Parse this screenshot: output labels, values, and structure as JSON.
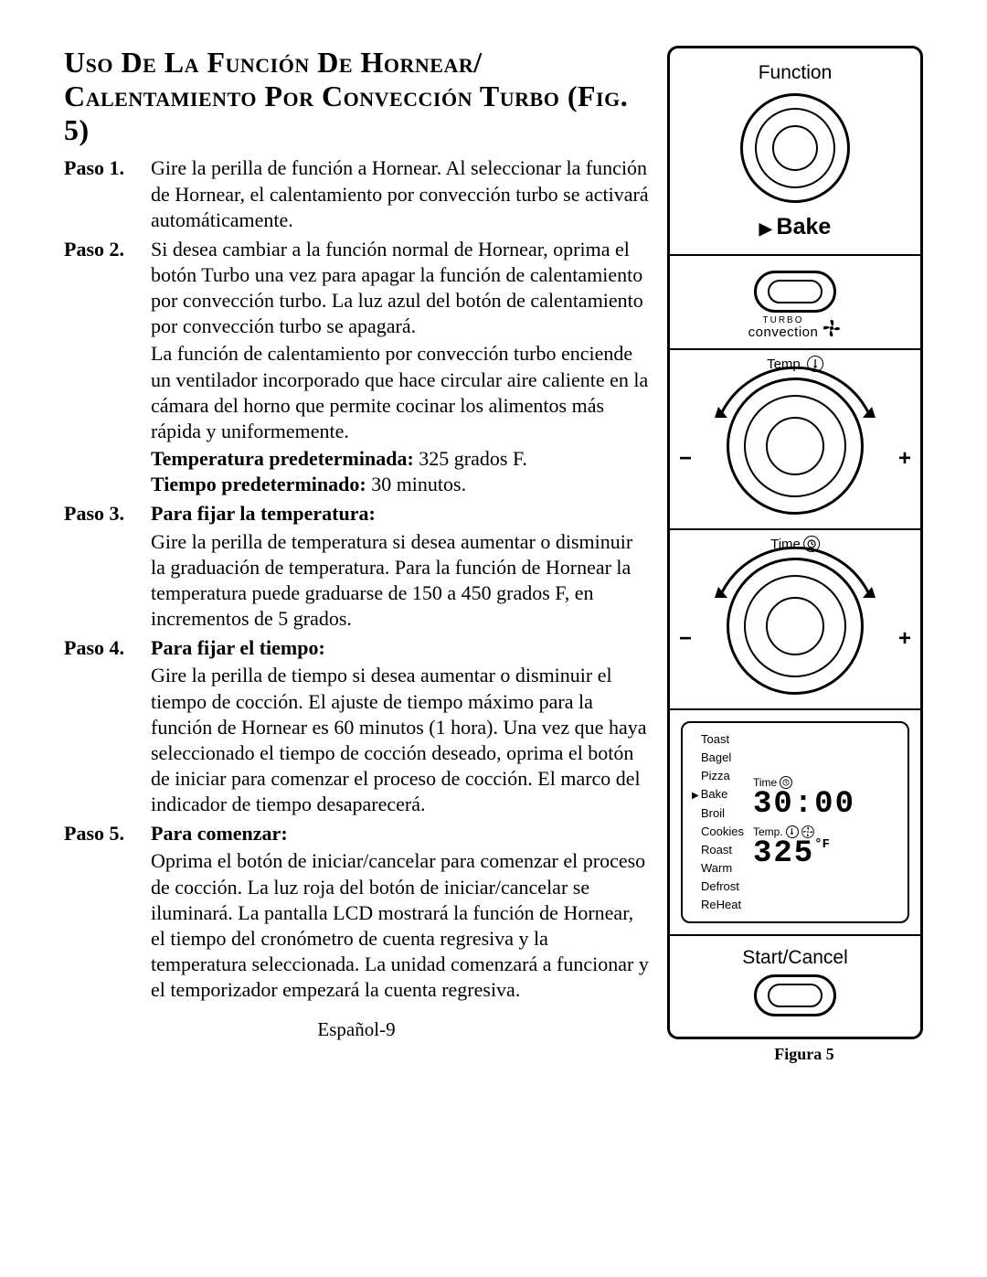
{
  "title_line1": "Uso De La Función De Hornear/",
  "title_line2": "Calentamiento Por Convección Turbo (Fig. 5)",
  "steps": {
    "s1": {
      "label": "Paso 1.",
      "body": "Gire la perilla de función a Hornear. Al seleccionar la función de Hornear, el calentamiento por convección turbo se activará automáticamente."
    },
    "s2": {
      "label": "Paso 2.",
      "p1": "Si desea cambiar a la función normal de Hornear, oprima el botón Turbo una vez para apagar la función de calentamiento por convección turbo. La luz azul del botón de calentamiento por convección turbo se apagará.",
      "p2": "La función de calentamiento por convección turbo enciende un ventilador incorporado que hace circular aire caliente en la cámara del horno que permite cocinar los alimentos más rápida y uniformemente.",
      "tpre_label": "Temperatura predeterminada:",
      "tpre_val": " 325 grados F.",
      "tiempo_label": "Tiempo predeterminado:",
      "tiempo_val": " 30 minutos."
    },
    "s3": {
      "label": "Paso 3.",
      "heading": "Para fijar la temperatura:",
      "body": "Gire la perilla de temperatura si desea aumentar o disminuir la graduación de temperatura. Para la función de Hornear la temperatura puede graduarse de 150 a 450 grados F, en incrementos de 5 grados."
    },
    "s4": {
      "label": "Paso 4.",
      "heading": "Para fijar el tiempo:",
      "body": "Gire la perilla de tiempo si desea aumentar o disminuir el tiempo de cocción. El ajuste de tiempo máximo para la función de Hornear es 60 minutos (1 hora). Una vez que haya seleccionado el tiempo de cocción deseado, oprima el botón de iniciar para comenzar el proceso de cocción. El marco del indicador de tiempo desaparecerá."
    },
    "s5": {
      "label": "Paso 5.",
      "heading": "Para comenzar:",
      "body": "Oprima el botón de iniciar/cancelar para comenzar el proceso de cocción. La luz roja del botón de iniciar/cancelar se iluminará. La pantalla LCD mostrará la función de Hornear, el tiempo del cronómetro de cuenta regresiva y la temperatura seleccionada. La unidad comenzará a funcionar y el temporizador empezará la cuenta regresiva."
    }
  },
  "footer": "Español-9",
  "panel": {
    "function_label": "Function",
    "selected_function": "Bake",
    "turbo_small": "TURBO",
    "turbo_big": "convection",
    "temp_label": "Temp.",
    "time_label": "Time",
    "minus": "−",
    "plus": "+",
    "lcd_menu": [
      "Toast",
      "Bagel",
      "Pizza",
      "Bake",
      "Broil",
      "Cookies",
      "Roast",
      "Warm",
      "Defrost",
      "ReHeat"
    ],
    "lcd_selected_index": 3,
    "lcd_time_label": "Time",
    "lcd_time_value": "30:00",
    "lcd_temp_label": "Temp.",
    "lcd_temp_value": "325",
    "lcd_temp_unit": "°F",
    "start_label": "Start/Cancel",
    "caption": "Figura 5"
  }
}
